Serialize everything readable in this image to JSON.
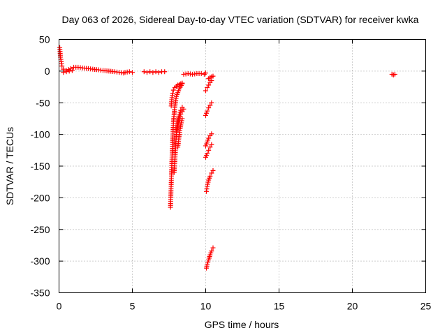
{
  "chart_data": {
    "type": "scatter",
    "title": "Day 063 of 2026, Sidereal Day-to-day VTEC variation (SDTVAR) for receiver kwka",
    "xlabel": "GPS time / hours",
    "ylabel": "SDTVAR / TECUs",
    "xlim": [
      0,
      25
    ],
    "ylim": [
      -350,
      50
    ],
    "xticks": [
      0,
      5,
      10,
      15,
      20,
      25
    ],
    "yticks": [
      50,
      0,
      -50,
      -100,
      -150,
      -200,
      -250,
      -300,
      -350
    ],
    "grid": true,
    "marker": "+",
    "color": "#ff0000",
    "series": [
      {
        "name": "SDTVAR",
        "segments": [
          {
            "x": [
              0.05,
              0.1,
              0.15,
              0.2,
              0.3,
              0.5,
              0.8,
              1.0,
              1.3,
              1.6,
              2.0,
              2.3,
              2.7,
              3.0,
              3.4,
              3.8,
              4.1,
              4.4
            ],
            "y": [
              37,
              22,
              15,
              8,
              3,
              1,
              4,
              6,
              6,
              5,
              4,
              3,
              2,
              1,
              0,
              -1,
              -2,
              -3
            ]
          },
          {
            "x": [
              0.3,
              0.5,
              0.7,
              0.9
            ],
            "y": [
              -2,
              -1,
              0,
              1
            ]
          },
          {
            "x": [
              4.5,
              4.8,
              5.0
            ],
            "y": [
              -2,
              -1,
              -2
            ]
          },
          {
            "x": [
              5.8,
              6.0,
              6.2,
              6.4,
              6.6,
              6.8,
              7.0,
              7.2
            ],
            "y": [
              -1,
              -2,
              -1,
              -2,
              -1,
              -2,
              -1,
              -1
            ]
          },
          {
            "x": [
              8.5,
              8.8,
              9.1,
              9.4,
              9.7,
              9.9,
              10.0
            ],
            "y": [
              -5,
              -4,
              -5,
              -4,
              -4,
              -5,
              -3
            ]
          },
          {
            "x": [
              7.6,
              7.62,
              7.64,
              7.66,
              7.7,
              7.75,
              7.8,
              7.9,
              8.0,
              8.2,
              8.4
            ],
            "y": [
              -215,
              -200,
              -185,
              -170,
              -140,
              -110,
              -80,
              -55,
              -40,
              -28,
              -20
            ]
          },
          {
            "x": [
              7.65,
              7.7,
              7.75,
              7.8,
              7.9,
              8.0,
              8.1,
              8.2,
              8.3,
              8.4
            ],
            "y": [
              -55,
              -42,
              -35,
              -30,
              -26,
              -24,
              -22,
              -21,
              -20,
              -19
            ]
          },
          {
            "x": [
              7.85,
              7.9,
              7.95,
              8.0,
              8.1,
              8.2,
              8.3,
              8.4,
              8.5
            ],
            "y": [
              -160,
              -140,
              -120,
              -100,
              -85,
              -75,
              -68,
              -64,
              -60
            ]
          },
          {
            "x": [
              8.0,
              8.1,
              8.2,
              8.3,
              8.4
            ],
            "y": [
              -95,
              -80,
              -68,
              -62,
              -57
            ]
          },
          {
            "x": [
              8.1,
              8.2,
              8.3,
              8.4
            ],
            "y": [
              -120,
              -100,
              -85,
              -75
            ]
          },
          {
            "x": [
              10.0,
              10.1,
              10.2,
              10.3,
              10.4
            ],
            "y": [
              -70,
              -63,
              -58,
              -54,
              -50
            ]
          },
          {
            "x": [
              10.0,
              10.1,
              10.2,
              10.3,
              10.4
            ],
            "y": [
              -118,
              -112,
              -106,
              -102,
              -99
            ]
          },
          {
            "x": [
              10.0,
              10.1,
              10.2,
              10.3,
              10.4
            ],
            "y": [
              -136,
              -130,
              -125,
              -120,
              -116
            ]
          },
          {
            "x": [
              10.05,
              10.1,
              10.2,
              10.3,
              10.4,
              10.5
            ],
            "y": [
              -190,
              -182,
              -172,
              -166,
              -161,
              -157
            ]
          },
          {
            "x": [
              10.05,
              10.1,
              10.2,
              10.3,
              10.4,
              10.5
            ],
            "y": [
              -311,
              -305,
              -298,
              -290,
              -284,
              -279
            ]
          },
          {
            "x": [
              10.0,
              10.1,
              10.2,
              10.3,
              10.4
            ],
            "y": [
              -31,
              -26,
              -22,
              -18,
              -15
            ]
          },
          {
            "x": [
              10.2,
              10.3,
              10.4,
              10.5
            ],
            "y": [
              -12,
              -10,
              -9,
              -8
            ]
          },
          {
            "x": [
              22.7,
              22.8,
              22.9
            ],
            "y": [
              -5,
              -6,
              -5
            ]
          }
        ]
      }
    ]
  }
}
